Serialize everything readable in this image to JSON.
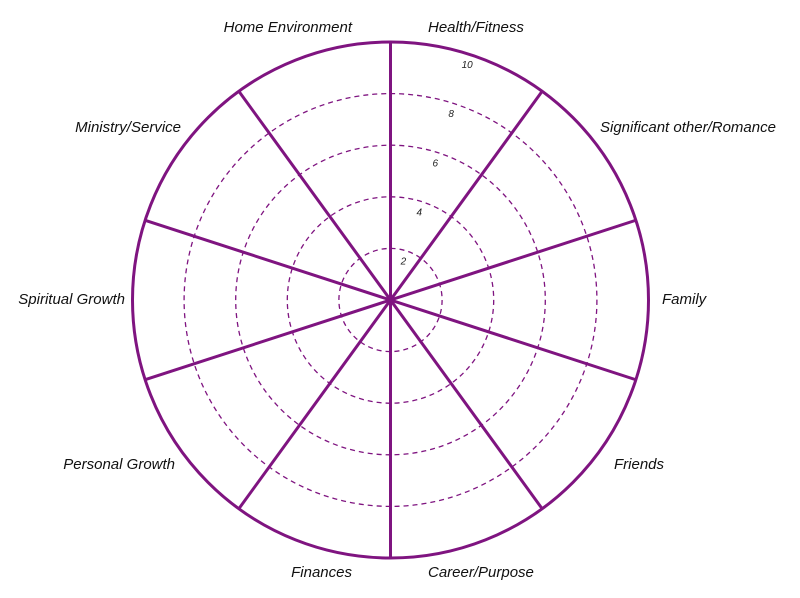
{
  "colors": {
    "wheel": "#7F1480"
  },
  "scale": {
    "max": 10,
    "rings": [
      2,
      4,
      6,
      8
    ],
    "tick_labels": [
      "2",
      "4",
      "6",
      "8",
      "10"
    ]
  },
  "categories": [
    "Health/Fitness",
    "Significant other/Romance",
    "Family",
    "Friends",
    "Career/Purpose",
    "Finances",
    "Personal Growth",
    "Spiritual Growth",
    "Ministry/Service",
    "Home Environment"
  ]
}
